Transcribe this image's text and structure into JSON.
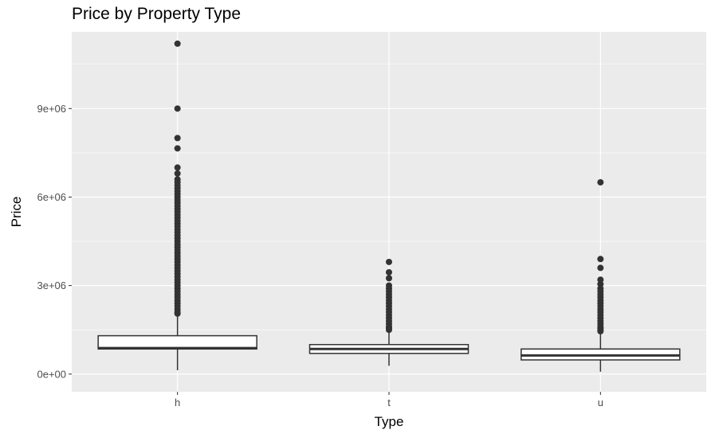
{
  "chart_data": {
    "type": "boxplot",
    "title": "Price by Property Type",
    "xlabel": "Type",
    "ylabel": "Price",
    "categories": [
      "h",
      "t",
      "u"
    ],
    "ylim": [
      -600000,
      11600000
    ],
    "yticks": [
      0,
      3000000,
      6000000,
      9000000
    ],
    "ytick_labels": [
      "0e+00",
      "3e+06",
      "6e+06",
      "9e+06"
    ],
    "grid": true,
    "legend": "none",
    "colors": {
      "panel": "#ebebeb",
      "grid": "#ffffff",
      "box_fill": "#ffffff",
      "box_line": "#333333",
      "outlier": "#333333",
      "tick_text": "#4d4d4d"
    },
    "boxes": [
      {
        "category": "h",
        "whisker_low": 130000,
        "q1": 850000,
        "median": 880000,
        "q3": 1300000,
        "whisker_high": 2000000,
        "outliers": [
          11200000,
          9000000,
          8000000,
          7650000,
          7000000,
          6800000,
          6600000,
          6500000,
          6400000,
          6300000,
          6200000,
          6100000,
          6000000,
          5900000,
          5800000,
          5700000,
          5600000,
          5500000,
          5400000,
          5300000,
          5200000,
          5100000,
          5000000,
          4900000,
          4800000,
          4700000,
          4600000,
          4500000,
          4400000,
          4300000,
          4200000,
          4100000,
          4000000,
          3900000,
          3800000,
          3700000,
          3600000,
          3500000,
          3400000,
          3300000,
          3200000,
          3100000,
          3000000,
          2900000,
          2800000,
          2700000,
          2600000,
          2500000,
          2400000,
          2300000,
          2200000,
          2100000,
          2050000
        ]
      },
      {
        "category": "t",
        "whisker_low": 280000,
        "q1": 700000,
        "median": 850000,
        "q3": 1000000,
        "whisker_high": 1450000,
        "outliers": [
          3800000,
          3450000,
          3250000,
          3000000,
          2900000,
          2800000,
          2700000,
          2600000,
          2500000,
          2400000,
          2300000,
          2200000,
          2100000,
          2000000,
          1900000,
          1800000,
          1700000,
          1600000,
          1550000,
          1500000
        ]
      },
      {
        "category": "u",
        "whisker_low": 80000,
        "q1": 480000,
        "median": 630000,
        "q3": 850000,
        "whisker_high": 1350000,
        "outliers": [
          6500000,
          3900000,
          3600000,
          3200000,
          3050000,
          2900000,
          2800000,
          2700000,
          2600000,
          2500000,
          2400000,
          2300000,
          2200000,
          2100000,
          2000000,
          1900000,
          1800000,
          1700000,
          1600000,
          1550000,
          1500000,
          1450000
        ]
      }
    ]
  }
}
